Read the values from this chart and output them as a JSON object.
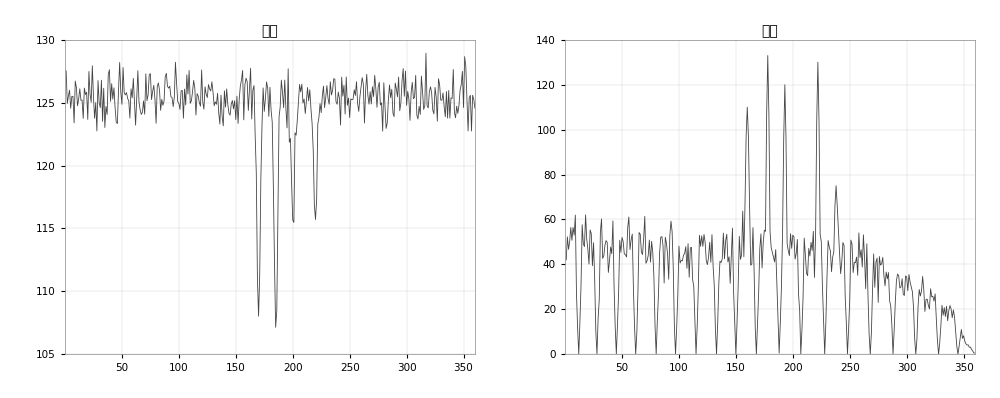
{
  "title_left": "均値",
  "title_right": "方差",
  "xlim": [
    0,
    360
  ],
  "xticks": [
    50,
    100,
    150,
    200,
    250,
    300,
    350
  ],
  "left_ylim": [
    105,
    130
  ],
  "left_yticks": [
    105,
    110,
    115,
    120,
    125,
    130
  ],
  "right_ylim": [
    0,
    140
  ],
  "right_yticks": [
    0,
    20,
    40,
    60,
    80,
    100,
    120,
    140
  ],
  "line_color": "#444444",
  "bg_color": "#ffffff",
  "fig_bg": "#ffffff",
  "linewidth": 0.6,
  "n_points": 360
}
